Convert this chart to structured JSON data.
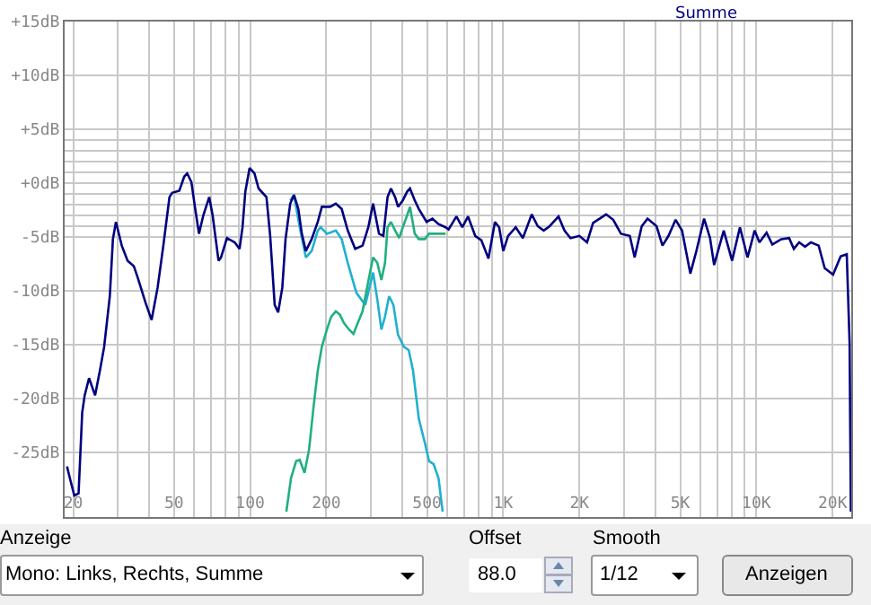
{
  "chart_data": {
    "type": "line",
    "log": "x",
    "grid": true,
    "xlim": [
      18.5,
      23700
    ],
    "ylim": [
      -31,
      15
    ],
    "xticks": [
      20,
      {
        "value": 30,
        "label": null
      },
      {
        "value": 40,
        "label": null
      },
      50,
      {
        "value": 60,
        "label": null
      },
      {
        "value": 70,
        "label": null
      },
      {
        "value": 80,
        "label": null
      },
      {
        "value": 90,
        "label": null
      },
      100,
      200,
      {
        "value": 300,
        "label": null
      },
      {
        "value": 400,
        "label": null
      },
      500,
      {
        "value": 600,
        "label": null
      },
      {
        "value": 700,
        "label": null
      },
      {
        "value": 800,
        "label": null
      },
      {
        "value": 900,
        "label": null
      },
      {
        "value": 1000,
        "label": "1K"
      },
      {
        "value": 2000,
        "label": "2K"
      },
      {
        "value": 3000,
        "label": null
      },
      {
        "value": 4000,
        "label": null
      },
      {
        "value": 5000,
        "label": "5K"
      },
      {
        "value": 6000,
        "label": null
      },
      {
        "value": 7000,
        "label": null
      },
      {
        "value": 8000,
        "label": null
      },
      {
        "value": 9000,
        "label": null
      },
      {
        "value": 10000,
        "label": "10K"
      },
      {
        "value": 20000,
        "label": "20K"
      }
    ],
    "yticks": [
      {
        "value": 15,
        "label": "+15dB"
      },
      {
        "value": 10,
        "label": "+10dB"
      },
      {
        "value": 5,
        "label": "+5dB"
      },
      {
        "value": 4,
        "label": null
      },
      {
        "value": 3,
        "label": null
      },
      {
        "value": 2,
        "label": null
      },
      {
        "value": 1,
        "label": null
      },
      {
        "value": 0,
        "label": "+0dB"
      },
      {
        "value": -1,
        "label": null
      },
      {
        "value": -2,
        "label": null
      },
      {
        "value": -3,
        "label": null
      },
      {
        "value": -4,
        "label": null
      },
      {
        "value": -5,
        "label": "-5dB"
      },
      {
        "value": -10,
        "label": "-10dB"
      },
      {
        "value": -15,
        "label": "-15dB"
      },
      {
        "value": -20,
        "label": "-20dB"
      },
      {
        "value": -25,
        "label": "-25dB"
      }
    ],
    "series": [
      {
        "color": "#20b0d0",
        "x": [
          144,
          149,
          157,
          166,
          175,
          185,
          190,
          201,
          218,
          230,
          243,
          263,
          285,
          296,
          306,
          318,
          330,
          341,
          354,
          368,
          384,
          405,
          423,
          440,
          464,
          490,
          509,
          531,
          555,
          576
        ],
        "values": [
          -1.6,
          -1.1,
          -4.1,
          -6.9,
          -6.3,
          -4.4,
          -4.1,
          -4.7,
          -4.4,
          -5.2,
          -7.4,
          -10.2,
          -11.3,
          -9.7,
          -8.3,
          -10.8,
          -13.6,
          -12.4,
          -10.5,
          -11.3,
          -14.1,
          -15.2,
          -15.5,
          -17.4,
          -21.9,
          -24.1,
          -25.8,
          -26.1,
          -27.4,
          -30.5
        ]
      },
      {
        "color": "#20b080",
        "x": [
          139,
          145,
          152,
          157,
          164,
          171,
          178,
          185,
          192,
          201,
          209,
          218,
          226,
          235,
          246,
          256,
          266,
          278,
          293,
          306,
          318,
          330,
          341,
          349,
          360,
          374,
          388,
          401,
          417,
          428,
          447,
          464,
          490,
          509,
          546,
          592
        ],
        "values": [
          -30.5,
          -27.4,
          -25.8,
          -25.7,
          -26.9,
          -24.7,
          -20.8,
          -17.4,
          -15.2,
          -13.6,
          -12.4,
          -11.9,
          -12.2,
          -13.0,
          -13.6,
          -14.0,
          -13.0,
          -11.9,
          -9.1,
          -6.9,
          -7.4,
          -9.0,
          -7.4,
          -4.1,
          -3.6,
          -4.4,
          -5.1,
          -4.1,
          -3.0,
          -2.2,
          -4.7,
          -5.2,
          -5.2,
          -4.7,
          -4.7,
          -4.7
        ]
      },
      {
        "name": "Summe",
        "color": "#000080",
        "x": [
          18.9,
          19.4,
          20.2,
          21.0,
          21.7,
          22.2,
          23.1,
          24.4,
          25.5,
          26.5,
          27.9,
          28.7,
          29.5,
          31.1,
          32.8,
          34.7,
          36.0,
          38.6,
          40.8,
          43.1,
          45.4,
          48.0,
          49.2,
          52.5,
          54.9,
          56.4,
          58.6,
          60.5,
          62.8,
          65.3,
          68.9,
          71.1,
          75.0,
          76.7,
          81.0,
          86.9,
          90.8,
          93.3,
          95.7,
          99.5,
          104,
          108,
          116,
          120,
          125,
          129,
          134,
          138,
          144,
          149,
          155,
          160,
          166,
          175,
          185,
          192,
          207,
          218,
          230,
          243,
          260,
          278,
          293,
          306,
          323,
          336,
          349,
          360,
          374,
          384,
          401,
          417,
          428,
          447,
          464,
          498,
          525,
          555,
          592,
          608,
          653,
          689,
          726,
          775,
          819,
          874,
          927,
          963,
          1000,
          1045,
          1120,
          1195,
          1296,
          1368,
          1445,
          1525,
          1653,
          1745,
          1843,
          1999,
          2143,
          2263,
          2548,
          2719,
          2917,
          3162,
          3304,
          3524,
          3715,
          4033,
          4256,
          4495,
          4797,
          5085,
          5483,
          5794,
          6214,
          6561,
          6808,
          7430,
          8015,
          8610,
          9226,
          9840,
          10280,
          10970,
          11560,
          12550,
          13470,
          14060,
          14760,
          15570,
          16430,
          17620,
          18620,
          20090,
          21530,
          22750,
          23350,
          23620
        ],
        "values": [
          -26.3,
          -27.4,
          -29.0,
          -28.8,
          -21.3,
          -19.7,
          -18.1,
          -19.7,
          -17.4,
          -15.2,
          -10.5,
          -5.2,
          -3.6,
          -5.8,
          -7.2,
          -7.7,
          -8.8,
          -11.1,
          -12.7,
          -9.7,
          -5.8,
          -1.3,
          -0.9,
          -0.7,
          0.6,
          0.9,
          0.1,
          -2.2,
          -4.7,
          -3.0,
          -1.3,
          -3.0,
          -7.2,
          -6.9,
          -5.1,
          -5.5,
          -6.1,
          -4.1,
          -0.8,
          1.4,
          0.9,
          -0.5,
          -1.3,
          -4.9,
          -11.3,
          -12.0,
          -9.7,
          -5.2,
          -1.9,
          -1.1,
          -2.4,
          -4.7,
          -6.3,
          -5.2,
          -3.6,
          -2.2,
          -2.2,
          -1.9,
          -2.4,
          -4.4,
          -6.1,
          -5.8,
          -4.1,
          -1.9,
          -4.7,
          -4.9,
          -1.3,
          -0.5,
          -1.3,
          -2.2,
          -1.6,
          -0.8,
          -0.5,
          -1.6,
          -2.4,
          -3.6,
          -3.3,
          -3.8,
          -4.1,
          -4.3,
          -3.1,
          -4.1,
          -3.1,
          -4.9,
          -5.3,
          -7.0,
          -3.6,
          -4.1,
          -6.3,
          -4.9,
          -4.1,
          -5.1,
          -2.9,
          -4.0,
          -4.4,
          -4.0,
          -3.1,
          -4.4,
          -5.1,
          -4.9,
          -5.5,
          -3.7,
          -2.9,
          -3.4,
          -4.7,
          -4.9,
          -6.9,
          -4.0,
          -3.3,
          -4.0,
          -5.8,
          -4.9,
          -3.4,
          -4.4,
          -8.4,
          -6.3,
          -3.3,
          -5.1,
          -7.6,
          -4.4,
          -7.2,
          -4.1,
          -6.9,
          -4.4,
          -5.5,
          -4.6,
          -5.7,
          -5.2,
          -5.1,
          -6.1,
          -5.5,
          -5.9,
          -5.5,
          -5.8,
          -7.9,
          -8.5,
          -6.8,
          -6.6,
          -14.9,
          -30.5
        ]
      }
    ],
    "annotations": [
      "Anzeige",
      "Mono: Links, Rechts, Summe",
      "Offset",
      "88.0",
      "Smooth",
      "1/12",
      "Anzeigen"
    ]
  }
}
